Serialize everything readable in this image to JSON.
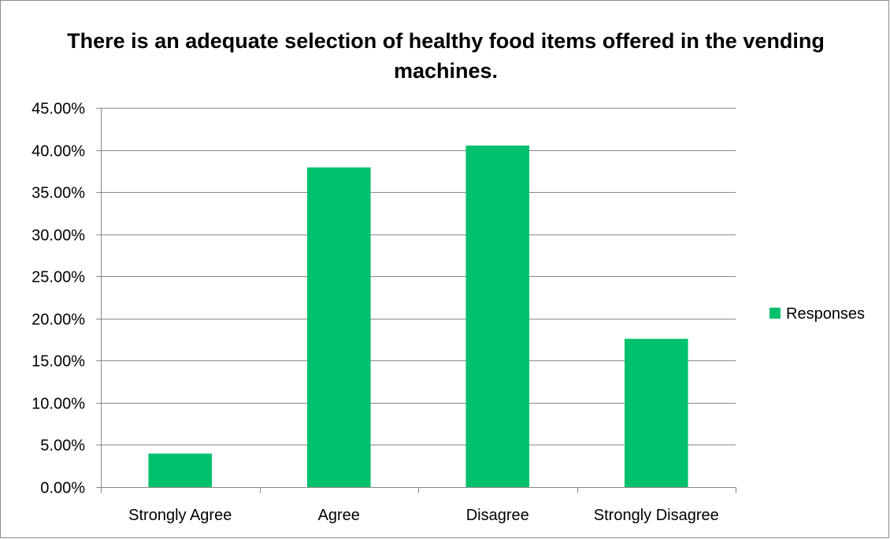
{
  "chart_data": {
    "type": "bar",
    "title": "There is an adequate selection of healthy food items offered in the vending machines.",
    "categories": [
      "Strongly Agree",
      "Agree",
      "Disagree",
      "Strongly Disagree"
    ],
    "series": [
      {
        "name": "Responses",
        "values": [
          0.0397,
          0.3793,
          0.4052,
          0.1759
        ],
        "color": "#00c06e"
      }
    ],
    "xlabel": "",
    "ylabel": "",
    "ylim": [
      0,
      0.45
    ],
    "ytick_step": 0.05,
    "ytick_labels": [
      "0.00%",
      "5.00%",
      "10.00%",
      "15.00%",
      "20.00%",
      "25.00%",
      "30.00%",
      "35.00%",
      "40.00%",
      "45.00%"
    ],
    "grid": true,
    "legend_position": "right",
    "gridline_color": "#888888"
  }
}
